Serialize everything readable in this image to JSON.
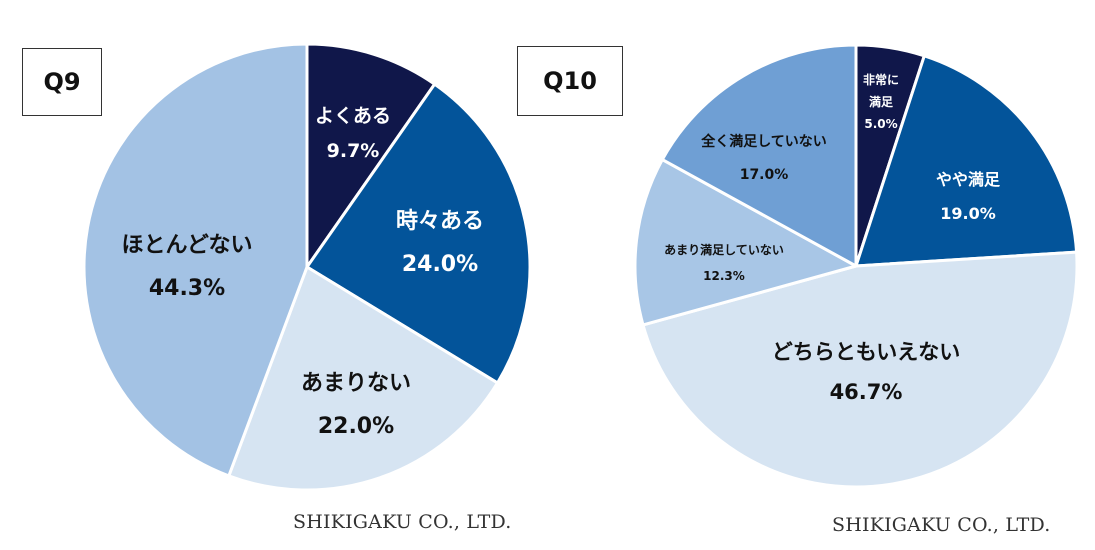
{
  "charts": {
    "q9": {
      "title": "Q9",
      "credit": "SHIKIGAKU CO., LTD."
    },
    "q10": {
      "title": "Q10",
      "credit": "SHIKIGAKU CO., LTD."
    }
  },
  "chart_data": [
    {
      "type": "pie",
      "title": "Q9",
      "start": "12 o'clock",
      "direction": "clockwise",
      "slices": [
        {
          "label": "よくある",
          "value": 9.7,
          "value_label": "9.7%",
          "color": "#10174a",
          "text_color": "#ffffff"
        },
        {
          "label": "時々ある",
          "value": 24.0,
          "value_label": "24.0%",
          "color": "#03549a",
          "text_color": "#ffffff"
        },
        {
          "label": "あまりない",
          "value": 22.0,
          "value_label": "22.0%",
          "color": "#d6e4f2",
          "text_color": "#111111"
        },
        {
          "label": "ほとんどない",
          "value": 44.3,
          "value_label": "44.3%",
          "color": "#a3c2e4",
          "text_color": "#111111"
        }
      ]
    },
    {
      "type": "pie",
      "title": "Q10",
      "start": "12 o'clock",
      "direction": "clockwise",
      "slices": [
        {
          "label": [
            "非常に",
            "満足"
          ],
          "value": 5.0,
          "value_label": "5.0%",
          "color": "#10174a",
          "text_color": "#ffffff"
        },
        {
          "label": "やや満足",
          "value": 19.0,
          "value_label": "19.0%",
          "color": "#03549a",
          "text_color": "#ffffff"
        },
        {
          "label": "どちらともいえない",
          "value": 46.7,
          "value_label": "46.7%",
          "color": "#d6e4f2",
          "text_color": "#111111"
        },
        {
          "label": "あまり満足していない",
          "value": 12.3,
          "value_label": "12.3%",
          "color": "#a8c6e6",
          "text_color": "#111111"
        },
        {
          "label": "全く満足していない",
          "value": 17.0,
          "value_label": "17.0%",
          "color": "#6f9fd4",
          "text_color": "#111111"
        }
      ]
    }
  ]
}
